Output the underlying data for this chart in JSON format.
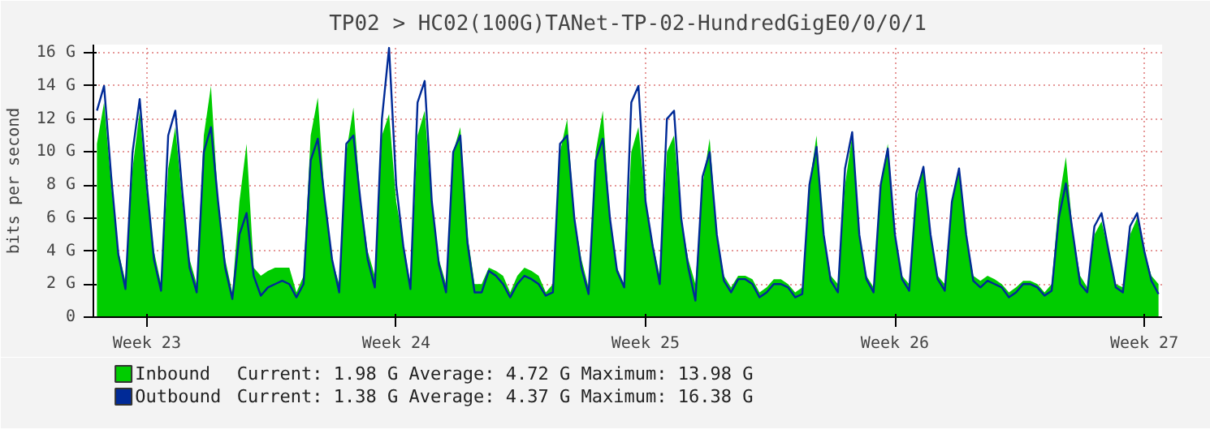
{
  "chart_data": {
    "type": "area",
    "title": "TP02 > HC02(100G)TANet-TP-02-HundredGigE0/0/0/1",
    "ylabel": "bits per second",
    "categories": [
      null,
      null,
      null,
      null,
      null,
      null,
      null,
      "Week 23",
      null,
      null,
      null,
      null,
      null,
      null,
      null,
      null,
      null,
      null,
      null,
      null,
      null,
      null,
      null,
      null,
      null,
      null,
      null,
      null,
      null,
      null,
      null,
      null,
      null,
      null,
      null,
      null,
      null,
      null,
      null,
      null,
      null,
      null,
      "Week 24",
      null,
      null,
      null,
      null,
      null,
      null,
      null,
      null,
      null,
      null,
      null,
      null,
      null,
      null,
      null,
      null,
      null,
      null,
      null,
      null,
      null,
      null,
      null,
      null,
      null,
      null,
      null,
      null,
      null,
      null,
      null,
      null,
      null,
      null,
      "Week 25",
      null,
      null,
      null,
      null,
      null,
      null,
      null,
      null,
      null,
      null,
      null,
      null,
      null,
      null,
      null,
      null,
      null,
      null,
      null,
      null,
      null,
      null,
      null,
      null,
      null,
      null,
      null,
      null,
      null,
      null,
      null,
      null,
      null,
      null,
      "Week 26",
      null,
      null,
      null,
      null,
      null,
      null,
      null,
      null,
      null,
      null,
      null,
      null,
      null,
      null,
      null,
      null,
      null,
      null,
      null,
      null,
      null,
      null,
      null,
      null,
      null,
      null,
      null,
      null,
      null,
      null,
      null,
      null,
      null,
      null,
      "Week 27",
      null,
      null
    ],
    "series": [
      {
        "name": "Inbound",
        "color": "#00cc00",
        "values": [
          10.5,
          13,
          8,
          4,
          2.2,
          9,
          12.5,
          7.5,
          4,
          2,
          9,
          11.5,
          7,
          3.5,
          2,
          11,
          14,
          7,
          3.5,
          1.5,
          7,
          10.5,
          3,
          2.5,
          2.8,
          3,
          3,
          3,
          1.5,
          2.5,
          11,
          13.3,
          7,
          3.5,
          2,
          10,
          12.7,
          7,
          4,
          2.5,
          11,
          12.3,
          7,
          4.5,
          2,
          11,
          12.5,
          7,
          3.5,
          2,
          10,
          11.5,
          5,
          2,
          2,
          3,
          2.8,
          2.5,
          1.5,
          2.5,
          3,
          2.8,
          2.5,
          1.5,
          2,
          10,
          12,
          6,
          3.5,
          1.8,
          10,
          12.5,
          6,
          3,
          2,
          10,
          11.5,
          7,
          4.5,
          2.5,
          10,
          11,
          6,
          3.5,
          2,
          8,
          10.8,
          5,
          2.5,
          1.8,
          2.5,
          2.5,
          2.3,
          1.5,
          1.8,
          2.3,
          2.3,
          2,
          1.5,
          1.8,
          8,
          11,
          5,
          2.5,
          2,
          8,
          11,
          5,
          2.5,
          1.8,
          8,
          10.5,
          5,
          2.5,
          2,
          7,
          9.2,
          5,
          2.5,
          2,
          7,
          9,
          5,
          2.5,
          2.2,
          2.5,
          2.3,
          2,
          1.5,
          1.8,
          2.2,
          2.2,
          2,
          1.5,
          2,
          7,
          9.7,
          5,
          2.5,
          1.8,
          5,
          5.8,
          4,
          2,
          1.8,
          5,
          6,
          4,
          2.5,
          2.0
        ]
      },
      {
        "name": "Outbound",
        "type": "line",
        "color": "#002a97",
        "values": [
          12.5,
          14,
          8.5,
          3.8,
          1.7,
          10,
          13.2,
          8,
          3.5,
          1.6,
          11,
          12.5,
          7.5,
          3,
          1.5,
          10,
          11.5,
          7,
          3,
          1.1,
          5,
          6.3,
          2.5,
          1.3,
          1.8,
          2,
          2.2,
          2,
          1.2,
          2,
          9.5,
          10.8,
          7,
          3.5,
          1.5,
          10.5,
          11,
          7,
          3.5,
          1.8,
          12,
          16.3,
          8,
          4.3,
          1.7,
          13,
          14.3,
          7,
          3.2,
          1.5,
          10,
          11,
          4.5,
          1.5,
          1.5,
          2.8,
          2.5,
          2,
          1.2,
          2,
          2.5,
          2.3,
          2,
          1.3,
          1.5,
          10.5,
          11,
          6,
          3,
          1.4,
          9.5,
          10.8,
          6,
          2.8,
          1.8,
          13,
          14,
          7,
          4.3,
          2,
          12,
          12.5,
          6,
          3,
          1,
          8.5,
          10,
          5,
          2.2,
          1.5,
          2.3,
          2.3,
          2,
          1.2,
          1.5,
          2,
          2,
          1.8,
          1.2,
          1.4,
          8,
          10.3,
          5,
          2.2,
          1.5,
          9,
          11.2,
          5,
          2.3,
          1.5,
          8,
          10.2,
          5,
          2.3,
          1.6,
          7.5,
          9.1,
          5,
          2.3,
          1.6,
          7,
          9,
          5,
          2.2,
          1.8,
          2.2,
          2,
          1.8,
          1.2,
          1.5,
          2,
          2,
          1.8,
          1.3,
          1.6,
          6,
          8.1,
          5,
          2,
          1.5,
          5.5,
          6.3,
          4,
          1.8,
          1.5,
          5.5,
          6.3,
          4,
          2.2,
          1.4
        ]
      }
    ],
    "annotations": [
      "Current:    1.98 G   Average:    4.72 G   Maximum:   13.98 G",
      "Current:    1.38 G   Average:    4.37 G   Maximum:   16.38 G"
    ],
    "ylim": [
      0,
      16.5
    ],
    "yticks": [
      0,
      {
        "value": 2,
        "label": "2 G"
      },
      {
        "value": 4,
        "label": "4 G"
      },
      {
        "value": 6,
        "label": "6 G"
      },
      {
        "value": 8,
        "label": "8 G"
      },
      {
        "value": 10,
        "label": "10 G"
      },
      {
        "value": 12,
        "label": "12 G"
      },
      {
        "value": 14,
        "label": "14 G"
      },
      {
        "value": 16,
        "label": "16 G"
      }
    ],
    "grid": true,
    "legend": "bottom"
  }
}
